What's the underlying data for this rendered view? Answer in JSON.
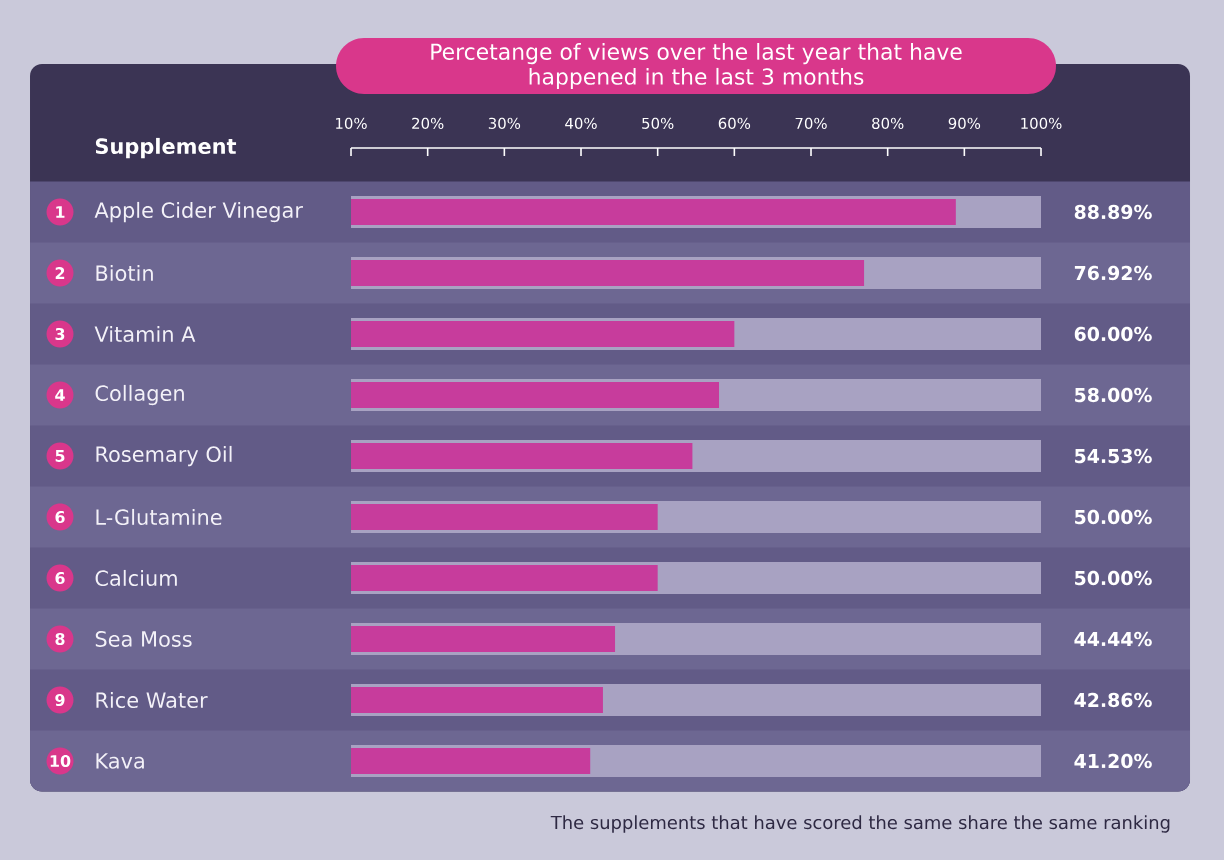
{
  "chart_data": {
    "type": "bar",
    "orientation": "horizontal",
    "title": "Percetange of views over the last year that have happened in the last 3 months",
    "ylabel": "Supplement",
    "categories": [
      "Apple Cider Vinegar",
      "Biotin",
      "Vitamin A",
      "Collagen",
      "Rosemary Oil",
      "L-Glutamine",
      "Calcium",
      "Sea Moss",
      "Rice Water",
      "Kava"
    ],
    "values": [
      88.89,
      76.92,
      60.0,
      58.0,
      54.53,
      50.0,
      50.0,
      44.44,
      42.86,
      41.2
    ],
    "value_labels": [
      "88.89%",
      "76.92%",
      "60.00%",
      "58.00%",
      "54.53%",
      "50.00%",
      "50.00%",
      "44.44%",
      "42.86%",
      "41.20%"
    ],
    "color": "#c73c9c",
    "xlim": [
      10,
      100
    ],
    "xticks": [
      {
        "value": 10,
        "label": "10%"
      },
      {
        "value": 20,
        "label": "20%"
      },
      {
        "value": 30,
        "label": "30%"
      },
      {
        "value": 40,
        "label": "40%"
      },
      {
        "value": 50,
        "label": "50%"
      },
      {
        "value": 60,
        "label": "60%"
      },
      {
        "value": 70,
        "label": "70%"
      },
      {
        "value": 80,
        "label": "80%"
      },
      {
        "value": 90,
        "label": "90%"
      },
      {
        "value": 100,
        "label": "100%"
      }
    ],
    "annotations": [
      "1",
      "2",
      "3",
      "4",
      "5",
      "6",
      "6",
      "8",
      "9",
      "10",
      "The supplements that have scored the same share the same ranking"
    ]
  }
}
